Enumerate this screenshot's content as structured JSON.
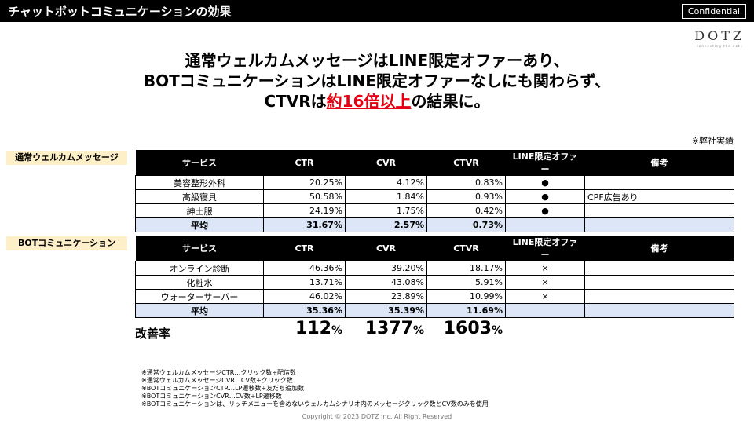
{
  "header": {
    "title": "チャットボットコミュニケーションの効果",
    "confidential": "Confidential"
  },
  "logo": {
    "main": "DOTZ",
    "sub": "connecting the dots"
  },
  "headline": {
    "line1": "通常ウェルカムメッセージはLINE限定オファーあり、",
    "line2": "BOTコミュニケーションはLINE限定オファーなしにも関わらず、",
    "line3_pre": "CTVRは",
    "line3_accent": "約16倍以上",
    "line3_post": "の結果に。"
  },
  "note_top": "※弊社実績",
  "columns": [
    "サービス",
    "CTR",
    "CVR",
    "CTVR",
    "LINE限定オファー",
    "備考"
  ],
  "table1": {
    "label": "通常ウェルカムメッセージ",
    "rows": [
      {
        "service": "美容整形外科",
        "ctr": "20.25%",
        "cvr": "4.12%",
        "ctvr": "0.83%",
        "offer": "●",
        "note": ""
      },
      {
        "service": "高級寝具",
        "ctr": "50.58%",
        "cvr": "1.84%",
        "ctvr": "0.93%",
        "offer": "●",
        "note": "CPF広告あり"
      },
      {
        "service": "紳士服",
        "ctr": "24.19%",
        "cvr": "1.75%",
        "ctvr": "0.42%",
        "offer": "●",
        "note": ""
      }
    ],
    "avg": {
      "service": "平均",
      "ctr": "31.67%",
      "cvr": "2.57%",
      "ctvr": "0.73%"
    }
  },
  "table2": {
    "label": "BOTコミュニケーション",
    "rows": [
      {
        "service": "オンライン診断",
        "ctr": "46.36%",
        "cvr": "39.20%",
        "ctvr": "18.17%",
        "offer": "×",
        "note": ""
      },
      {
        "service": "化粧水",
        "ctr": "13.71%",
        "cvr": "43.08%",
        "ctvr": "5.91%",
        "offer": "×",
        "note": ""
      },
      {
        "service": "ウォーターサーバー",
        "ctr": "46.02%",
        "cvr": "23.89%",
        "ctvr": "10.99%",
        "offer": "×",
        "note": ""
      }
    ],
    "avg": {
      "service": "平均",
      "ctr": "35.36%",
      "cvr": "35.39%",
      "ctvr": "11.69%"
    }
  },
  "improvement": {
    "label": "改善率",
    "ctr": "112",
    "cvr": "1377",
    "ctvr": "1603",
    "unit": "%"
  },
  "footnotes": [
    "※通常ウェルカムメッセージCTR…クリック数÷配信数",
    "※通常ウェルカムメッセージCVR…CV数÷クリック数",
    "※BOTコミュニケーションCTR…LP遷移数÷友だち追加数",
    "※BOTコミュニケーションCVR…CV数÷LP遷移数",
    "※BOTコミュニケーションは、リッチメニューを含めないウェルカムシナリオ内のメッセージクリック数とCV数のみを使用"
  ],
  "copyright": "Copyright © 2023 DOTZ inc. All Right Reserved"
}
